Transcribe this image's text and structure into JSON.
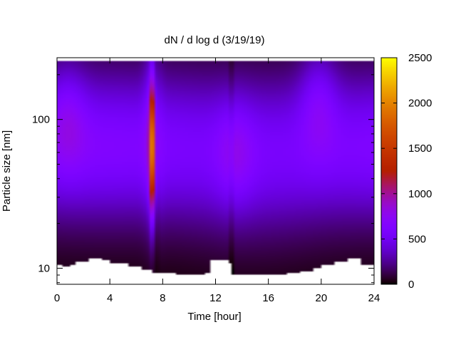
{
  "chart_data": {
    "type": "heatmap",
    "title": "dN / d log d (3/19/19)",
    "xlabel": "Time [hour]",
    "ylabel": "Particle size [nm]",
    "xlim": [
      0,
      24
    ],
    "ylim": [
      7.8,
      260
    ],
    "y_scale": "log",
    "x_ticks": [
      0,
      4,
      8,
      12,
      16,
      20,
      24
    ],
    "x_tick_labels": [
      "0",
      "4",
      "8",
      "12",
      "16",
      "20",
      "24"
    ],
    "y_ticks": [
      10,
      100
    ],
    "y_tick_labels": [
      "10",
      "100"
    ],
    "colorbar": {
      "min": 0,
      "max": 2500,
      "ticks": [
        0,
        500,
        1000,
        1500,
        2000,
        2500
      ],
      "tick_labels": [
        "0",
        "500",
        "1000",
        "1500",
        "2000",
        "2500"
      ],
      "colormap": "gnuplot (black-purple-red-yellow)"
    },
    "grid": false,
    "legend": "none",
    "data_range": {
      "size_max_nm": 245,
      "size_min_nm_by_time": [
        {
          "hour": 0.0,
          "size": 10.6
        },
        {
          "hour": 0.5,
          "size": 10.2
        },
        {
          "hour": 1.0,
          "size": 10.6
        },
        {
          "hour": 1.5,
          "size": 11.2
        },
        {
          "hour": 2.5,
          "size": 11.6
        },
        {
          "hour": 3.5,
          "size": 11.3
        },
        {
          "hour": 4.0,
          "size": 10.8
        },
        {
          "hour": 5.5,
          "size": 10.2
        },
        {
          "hour": 6.5,
          "size": 9.7
        },
        {
          "hour": 7.2,
          "size": 9.2
        },
        {
          "hour": 9.0,
          "size": 9.1
        },
        {
          "hour": 11.3,
          "size": 9.2
        },
        {
          "hour": 11.6,
          "size": 11.4
        },
        {
          "hour": 13.0,
          "size": 10.7
        },
        {
          "hour": 13.3,
          "size": 9.1
        },
        {
          "hour": 17.5,
          "size": 9.2
        },
        {
          "hour": 18.5,
          "size": 9.6
        },
        {
          "hour": 19.5,
          "size": 10.0
        },
        {
          "hour": 20.0,
          "size": 10.6
        },
        {
          "hour": 21.0,
          "size": 11.0
        },
        {
          "hour": 22.0,
          "size": 11.6
        },
        {
          "hour": 23.0,
          "size": 10.6
        },
        {
          "hour": 24.0,
          "size": 10.6
        }
      ]
    },
    "features": [
      {
        "hour": 7.2,
        "size_range_nm": [
          25,
          160
        ],
        "peak_value": 2050,
        "note": "narrow intense band"
      },
      {
        "hour": 0.8,
        "size_nm": 110,
        "value": 800
      },
      {
        "hour": 19.8,
        "size_nm": 140,
        "value": 850
      },
      {
        "hour": 13.5,
        "size_nm": 60,
        "value": 780
      }
    ]
  }
}
